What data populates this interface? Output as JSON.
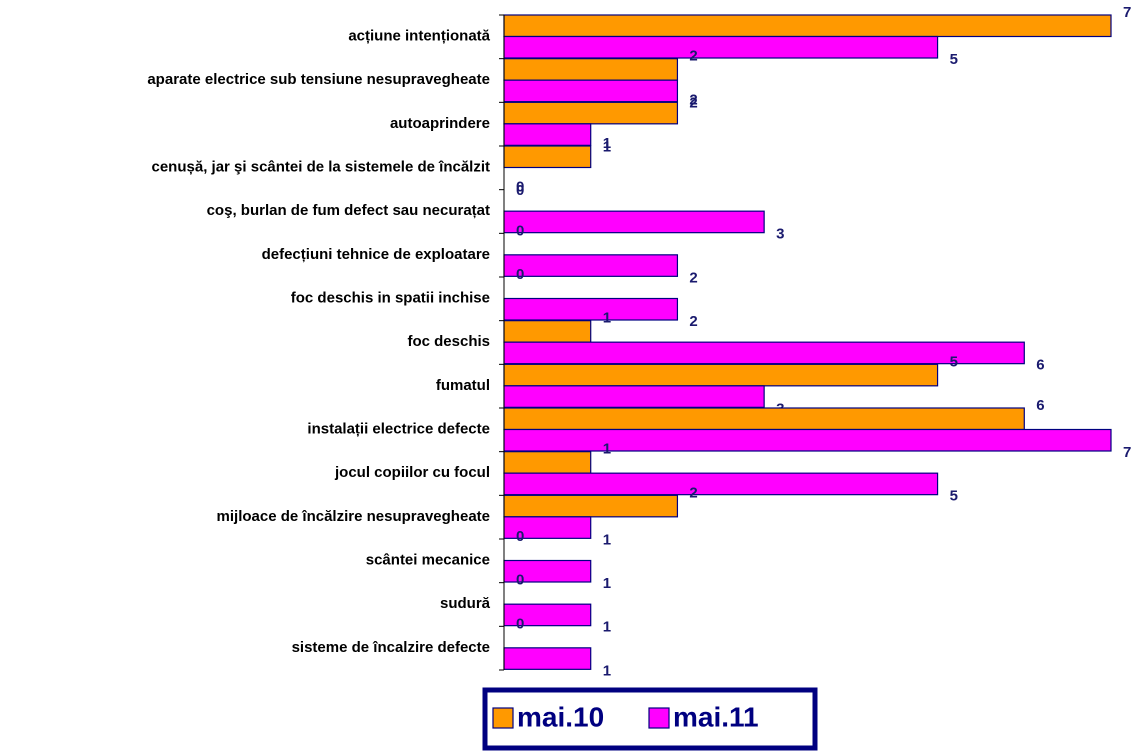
{
  "chart_data": {
    "type": "hbar",
    "categories": [
      "acțiune intenționată",
      "aparate electrice sub tensiune nesupravegheate",
      "autoaprindere",
      "cenușă, jar şi scântei de la sistemele de încălzit",
      "coş, burlan  de fum defect sau necurațat",
      "defecțiuni tehnice de exploatare",
      "foc deschis in spatii inchise",
      "foc deschis",
      "fumatul",
      "instalații electrice defecte",
      "jocul copiilor cu focul",
      "mijloace de încălzire nesupravegheate",
      "scântei mecanice",
      "sudură",
      "sisteme de încalzire defecte"
    ],
    "series": [
      {
        "name": "mai.10",
        "color": "#ff9900",
        "values": [
          7,
          2,
          2,
          1,
          0,
          0,
          0,
          1,
          5,
          6,
          1,
          2,
          0,
          0,
          0
        ]
      },
      {
        "name": "mai.11",
        "color": "#ff00ff",
        "values": [
          5,
          2,
          1,
          0,
          3,
          2,
          2,
          6,
          3,
          7,
          5,
          1,
          1,
          1,
          1
        ]
      }
    ],
    "xlim": [
      0,
      7
    ],
    "legend": "bottom"
  }
}
